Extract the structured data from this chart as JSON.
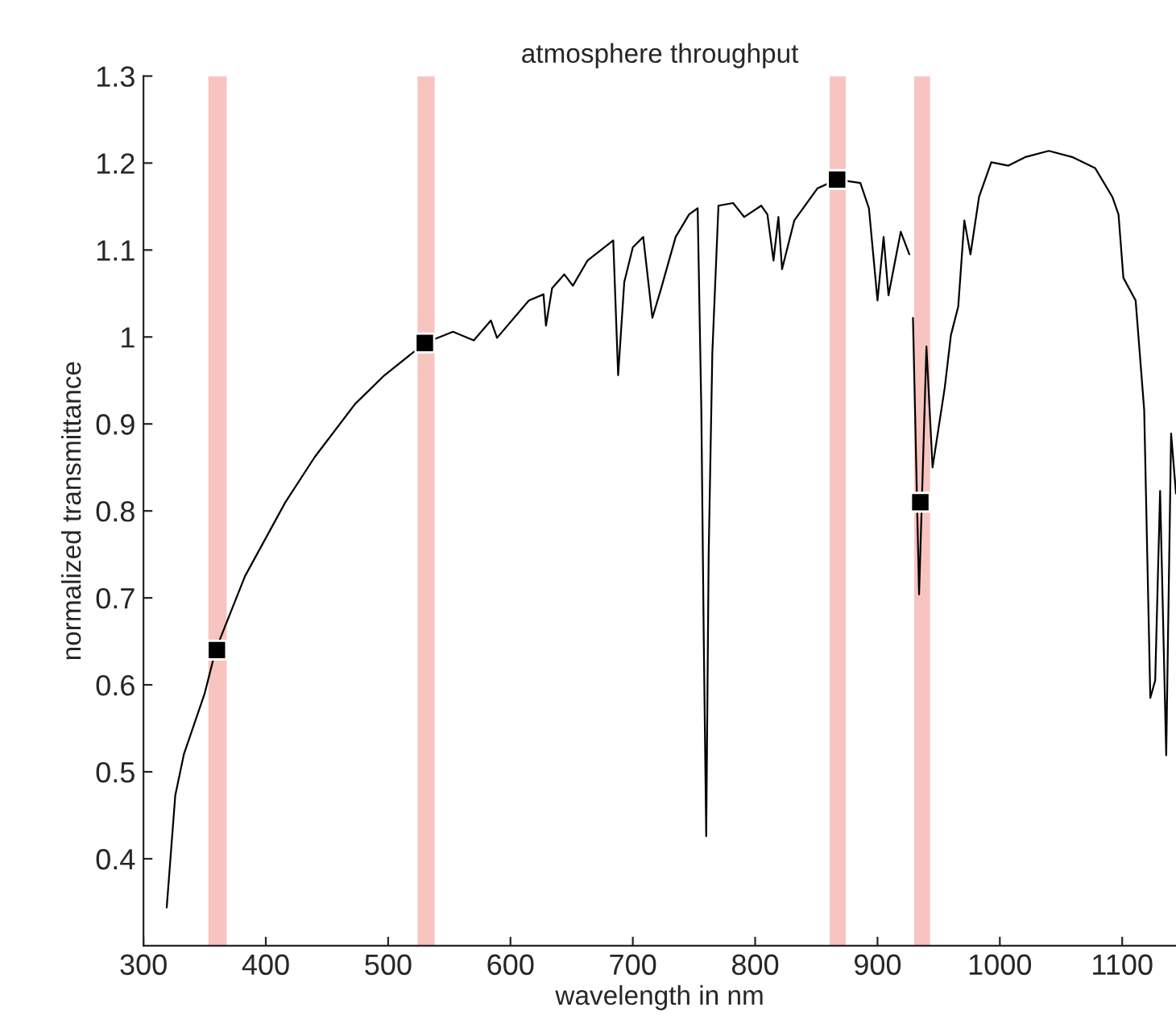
{
  "chart_data": {
    "type": "line",
    "title": "atmosphere throughput",
    "xlabel": "wavelength in nm",
    "ylabel": "normalized transmittance",
    "xlim": [
      300,
      1144
    ],
    "ylim": [
      0.3,
      1.3
    ],
    "xticks": [
      300,
      400,
      500,
      600,
      700,
      800,
      900,
      1000,
      1100
    ],
    "yticks": [
      0.4,
      0.5,
      0.6,
      0.7,
      0.8,
      0.9,
      1,
      1.1,
      1.2,
      1.3
    ],
    "grid": false,
    "legend": false,
    "bands": [
      {
        "axis": "x",
        "from": 353,
        "to": 368,
        "color": "#f8c4c0"
      },
      {
        "axis": "x",
        "from": 524,
        "to": 538,
        "color": "#f8c4c0"
      },
      {
        "axis": "x",
        "from": 861,
        "to": 874,
        "color": "#f8c4c0"
      },
      {
        "axis": "x",
        "from": 930,
        "to": 943,
        "color": "#f8c4c0"
      }
    ],
    "series": [
      {
        "color": "#000000",
        "x": [
          319,
          326,
          333,
          350,
          359,
          383,
          416,
          440,
          473,
          497,
          530,
          553,
          570,
          584,
          589,
          615,
          627,
          629,
          634,
          644,
          651,
          663,
          684,
          688,
          693,
          700,
          708.5,
          716,
          723,
          735,
          746,
          753,
          756,
          758,
          760,
          762,
          765,
          770,
          782,
          791,
          805,
          810,
          815,
          819,
          822,
          832,
          851,
          867,
          886,
          893,
          900,
          905,
          909,
          919,
          926
        ],
        "values": [
          0.344,
          0.473,
          0.52,
          0.59,
          0.64,
          0.725,
          0.81,
          0.862,
          0.923,
          0.956,
          0.993,
          1.006,
          0.996,
          1.019,
          0.999,
          1.042,
          1.049,
          1.013,
          1.056,
          1.072,
          1.059,
          1.088,
          1.111,
          0.956,
          1.063,
          1.103,
          1.115,
          1.022,
          1.055,
          1.115,
          1.141,
          1.148,
          0.916,
          0.651,
          0.426,
          0.75,
          0.982,
          1.151,
          1.154,
          1.138,
          1.151,
          1.141,
          1.088,
          1.138,
          1.078,
          1.134,
          1.171,
          1.181,
          1.177,
          1.148,
          1.042,
          1.115,
          1.048,
          1.121,
          1.095
        ]
      },
      {
        "color": "#000000",
        "x": [
          929,
          934,
          940,
          945,
          955,
          960,
          966,
          971,
          976,
          983,
          993,
          1007,
          1021,
          1040,
          1059,
          1078,
          1092,
          1097,
          1101,
          1111,
          1118,
          1123,
          1127,
          1131,
          1136,
          1140,
          1144
        ],
        "values": [
          1.022,
          0.704,
          0.989,
          0.85,
          0.942,
          1.002,
          1.035,
          1.134,
          1.095,
          1.161,
          1.201,
          1.197,
          1.207,
          1.214,
          1.207,
          1.194,
          1.161,
          1.141,
          1.068,
          1.042,
          0.916,
          0.585,
          0.605,
          0.823,
          0.519,
          0.889,
          0.82
        ]
      },
      {
        "type": "scatter",
        "color": "#000000",
        "marker": "square",
        "x": [
          360,
          530,
          867,
          935
        ],
        "values": [
          0.64,
          0.993,
          1.181,
          0.81
        ]
      }
    ]
  }
}
